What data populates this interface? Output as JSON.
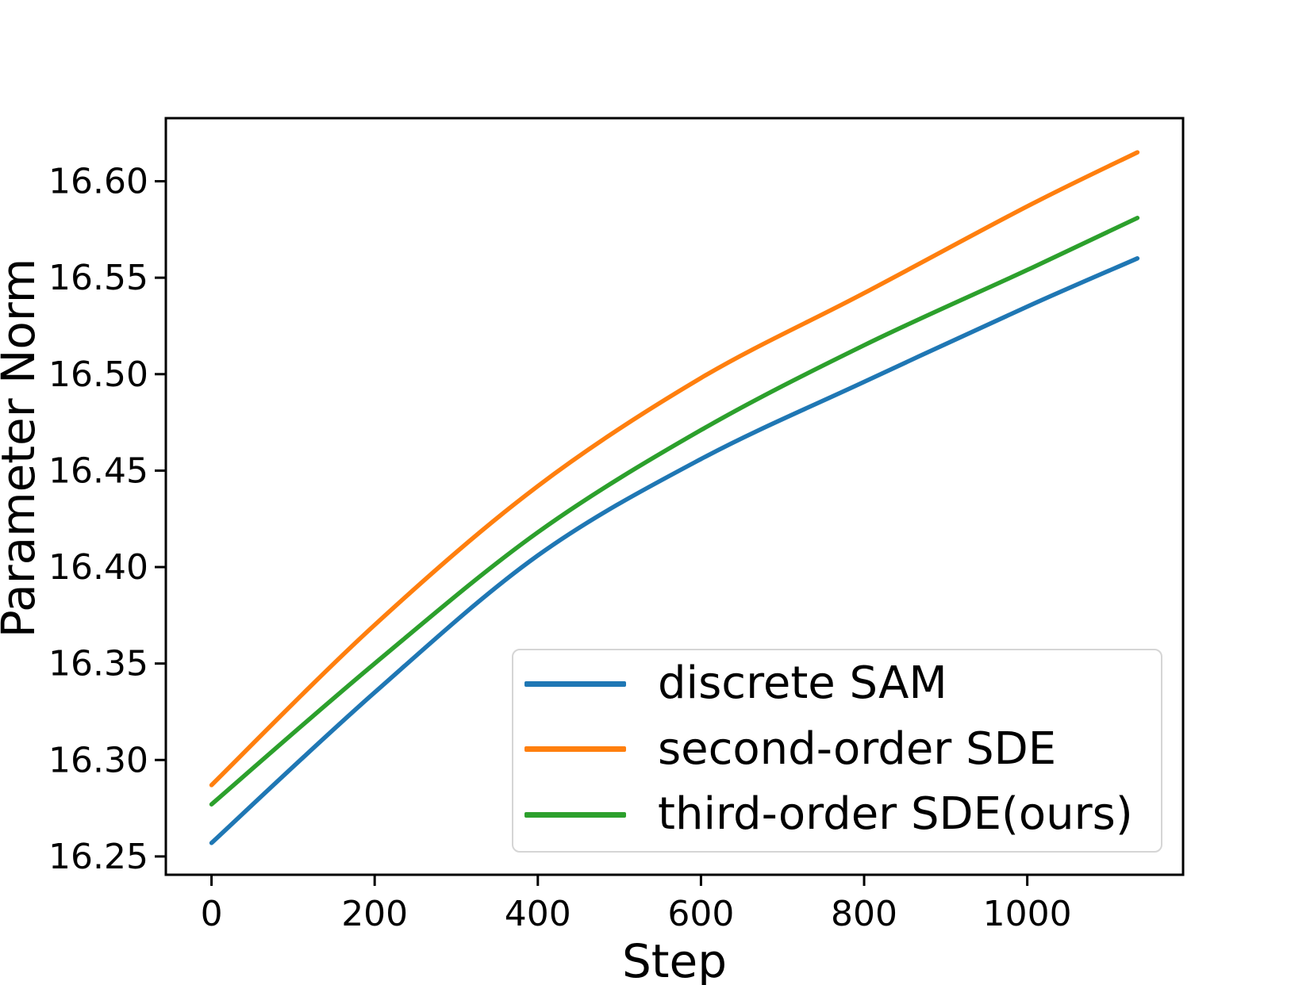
{
  "chart_data": {
    "type": "line",
    "title": "",
    "xlabel": "Step",
    "ylabel": "Parameter Norm",
    "x": [
      0,
      200,
      400,
      600,
      800,
      1000,
      1135
    ],
    "series": [
      {
        "name": "discrete SAM",
        "color": "#1f77b4",
        "values": [
          16.257,
          16.335,
          16.406,
          16.456,
          16.496,
          16.535,
          16.56
        ]
      },
      {
        "name": "second-order SDE",
        "color": "#ff7f0e",
        "values": [
          16.287,
          16.37,
          16.442,
          16.498,
          16.542,
          16.587,
          16.615
        ]
      },
      {
        "name": "third-order SDE(ours)",
        "color": "#2ca02c",
        "values": [
          16.277,
          16.35,
          16.418,
          16.471,
          16.515,
          16.554,
          16.581
        ]
      }
    ],
    "xticks": [
      0,
      200,
      400,
      600,
      800,
      1000
    ],
    "xtick_labels": [
      "0",
      "200",
      "400",
      "600",
      "800",
      "1000"
    ],
    "yticks": [
      16.25,
      16.3,
      16.35,
      16.4,
      16.45,
      16.5,
      16.55,
      16.6
    ],
    "ytick_labels": [
      "16.25",
      "16.30",
      "16.35",
      "16.40",
      "16.45",
      "16.50",
      "16.55",
      "16.60"
    ],
    "xlim": [
      -56,
      1191
    ],
    "ylim": [
      16.2405,
      16.6327
    ],
    "grid": false,
    "legend_position": "lower right",
    "axis_color": "#000000"
  }
}
